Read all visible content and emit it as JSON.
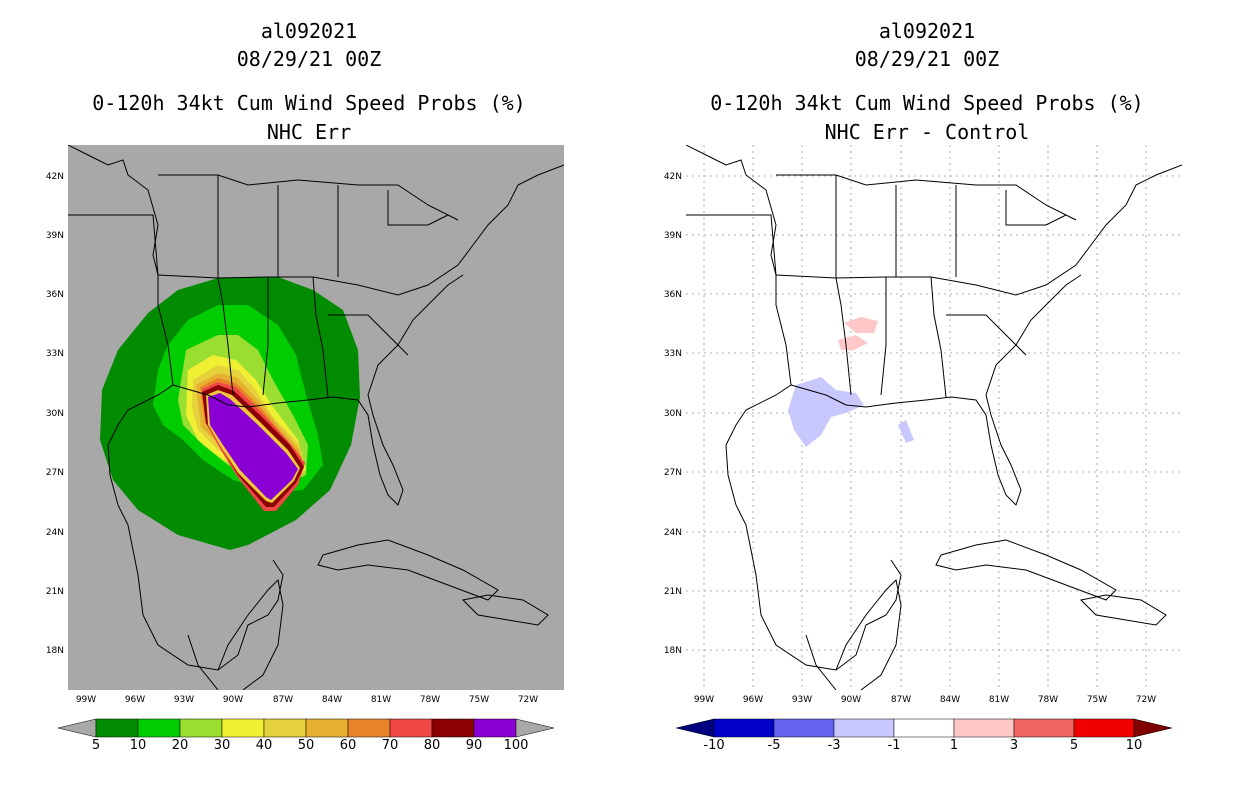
{
  "left": {
    "title_line1": "al092021",
    "title_line2": "08/29/21 00Z",
    "title_line3": "0-120h 34kt Cum Wind Speed Probs (%)",
    "title_line4": "NHC Err",
    "colorbar": {
      "colors": [
        "#008b00",
        "#00cd00",
        "#9ade32",
        "#f0f032",
        "#e6d23c",
        "#e6b030",
        "#e88528",
        "#f04646",
        "#8b0000",
        "#8a00d4"
      ],
      "labels": [
        "5",
        "10",
        "20",
        "30",
        "40",
        "50",
        "60",
        "70",
        "80",
        "90",
        "100"
      ]
    }
  },
  "right": {
    "title_line1": "al092021",
    "title_line2": "08/29/21 00Z",
    "title_line3": "0-120h 34kt Cum Wind Speed Probs (%)",
    "title_line4": "NHC Err - Control",
    "colorbar": {
      "colors": [
        "#0000c8",
        "#6464f0",
        "#c8c8ff",
        "#ffffff",
        "#ffc8c8",
        "#f06464",
        "#f00000"
      ],
      "end_low": "#000080",
      "end_high": "#800000",
      "labels": [
        "-10",
        "-5",
        "-3",
        "-1",
        "1",
        "3",
        "5",
        "10"
      ]
    }
  },
  "axes": {
    "lat_labels": [
      "42N",
      "39N",
      "36N",
      "33N",
      "30N",
      "27N",
      "24N",
      "21N",
      "18N"
    ],
    "lon_labels": [
      "99W",
      "96W",
      "93W",
      "90W",
      "87W",
      "84W",
      "81W",
      "78W",
      "75W",
      "72W"
    ]
  }
}
